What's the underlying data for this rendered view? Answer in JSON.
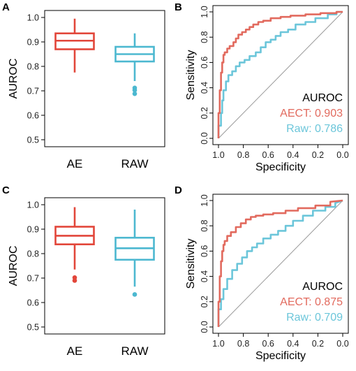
{
  "colors": {
    "ae": "#E2463A",
    "raw": "#4CB8D0",
    "ae_roc": "#E26A5E",
    "raw_roc": "#6CC6DA",
    "diag": "#9A9A9A",
    "frame": "#000000"
  },
  "chart_data": [
    {
      "panel": "A",
      "type": "box",
      "ylabel": "AUROC",
      "ylim": [
        0.5,
        1.0
      ],
      "yticks": [
        "0.5",
        "0.6",
        "0.7",
        "0.8",
        "0.9",
        "1.0"
      ],
      "categories": [
        "AE",
        "RAW"
      ],
      "boxes": [
        {
          "name": "AE",
          "color": "#E2463A",
          "whisker_low": 0.775,
          "q1": 0.87,
          "median": 0.905,
          "q3": 0.935,
          "whisker_high": 0.995,
          "outliers": []
        },
        {
          "name": "RAW",
          "color": "#4CB8D0",
          "whisker_low": 0.74,
          "q1": 0.82,
          "median": 0.85,
          "q3": 0.88,
          "whisker_high": 0.935,
          "outliers": [
            0.712,
            0.703,
            0.688
          ]
        }
      ]
    },
    {
      "panel": "B",
      "type": "line",
      "xlabel": "Specificity",
      "ylabel": "Sensitivity",
      "xlim": [
        1.0,
        0.0
      ],
      "ylim": [
        0.0,
        1.0
      ],
      "xticks": [
        "1.0",
        "0.8",
        "0.6",
        "0.4",
        "0.2",
        "0.0"
      ],
      "yticks": [
        "0.0",
        "0.2",
        "0.4",
        "0.6",
        "0.8",
        "1.0"
      ],
      "legend_title": "AUROC",
      "series": [
        {
          "name": "AECT: 0.903",
          "color": "#E26A5E",
          "x": [
            1.0,
            1.0,
            0.99,
            0.99,
            0.98,
            0.98,
            0.97,
            0.97,
            0.96,
            0.96,
            0.95,
            0.95,
            0.93,
            0.93,
            0.91,
            0.91,
            0.88,
            0.88,
            0.86,
            0.86,
            0.84,
            0.84,
            0.81,
            0.81,
            0.78,
            0.78,
            0.75,
            0.75,
            0.72,
            0.72,
            0.68,
            0.68,
            0.64,
            0.64,
            0.58,
            0.58,
            0.5,
            0.5,
            0.42,
            0.42,
            0.3,
            0.3,
            0.18,
            0.18,
            0.05,
            0.05,
            0.0
          ],
          "y": [
            0.0,
            0.2,
            0.2,
            0.38,
            0.38,
            0.52,
            0.52,
            0.6,
            0.6,
            0.66,
            0.66,
            0.68,
            0.68,
            0.71,
            0.71,
            0.73,
            0.73,
            0.76,
            0.76,
            0.79,
            0.79,
            0.82,
            0.82,
            0.84,
            0.84,
            0.86,
            0.86,
            0.88,
            0.88,
            0.9,
            0.9,
            0.92,
            0.92,
            0.93,
            0.93,
            0.95,
            0.95,
            0.96,
            0.96,
            0.97,
            0.97,
            0.98,
            0.98,
            0.99,
            0.99,
            1.0,
            1.0
          ]
        },
        {
          "name": "Raw: 0.786",
          "color": "#6CC6DA",
          "x": [
            1.0,
            1.0,
            0.98,
            0.98,
            0.97,
            0.97,
            0.96,
            0.96,
            0.94,
            0.94,
            0.92,
            0.92,
            0.89,
            0.89,
            0.86,
            0.86,
            0.83,
            0.83,
            0.79,
            0.79,
            0.75,
            0.75,
            0.7,
            0.7,
            0.66,
            0.66,
            0.62,
            0.62,
            0.58,
            0.58,
            0.54,
            0.54,
            0.5,
            0.5,
            0.44,
            0.44,
            0.38,
            0.38,
            0.3,
            0.3,
            0.22,
            0.22,
            0.12,
            0.12,
            0.05,
            0.05,
            0.0
          ],
          "y": [
            0.0,
            0.1,
            0.1,
            0.2,
            0.2,
            0.3,
            0.3,
            0.38,
            0.38,
            0.45,
            0.45,
            0.5,
            0.5,
            0.53,
            0.53,
            0.57,
            0.57,
            0.6,
            0.6,
            0.62,
            0.62,
            0.65,
            0.65,
            0.68,
            0.68,
            0.72,
            0.72,
            0.76,
            0.76,
            0.78,
            0.78,
            0.81,
            0.81,
            0.84,
            0.84,
            0.86,
            0.86,
            0.9,
            0.9,
            0.92,
            0.92,
            0.95,
            0.95,
            0.98,
            0.98,
            1.0,
            1.0
          ]
        }
      ]
    },
    {
      "panel": "C",
      "type": "box",
      "ylabel": "AUROC",
      "ylim": [
        0.5,
        1.0
      ],
      "yticks": [
        "0.5",
        "0.6",
        "0.7",
        "0.8",
        "0.9",
        "1.0"
      ],
      "categories": [
        "AE",
        "RAW"
      ],
      "boxes": [
        {
          "name": "AE",
          "color": "#E2463A",
          "whisker_low": 0.735,
          "q1": 0.838,
          "median": 0.873,
          "q3": 0.91,
          "whisker_high": 0.99,
          "outliers": [
            0.702,
            0.69
          ]
        },
        {
          "name": "RAW",
          "color": "#4CB8D0",
          "whisker_low": 0.665,
          "q1": 0.775,
          "median": 0.822,
          "q3": 0.865,
          "whisker_high": 0.98,
          "outliers": [
            0.633
          ]
        }
      ]
    },
    {
      "panel": "D",
      "type": "line",
      "xlabel": "Specificity",
      "ylabel": "Sensitivity",
      "xlim": [
        1.0,
        0.0
      ],
      "ylim": [
        0.0,
        1.0
      ],
      "xticks": [
        "1.0",
        "0.8",
        "0.6",
        "0.4",
        "0.2",
        "0.0"
      ],
      "yticks": [
        "0.0",
        "0.2",
        "0.4",
        "0.6",
        "0.8",
        "1.0"
      ],
      "legend_title": "AUROC",
      "series": [
        {
          "name": "AECT: 0.875",
          "color": "#E26A5E",
          "x": [
            1.0,
            1.0,
            0.99,
            0.99,
            0.98,
            0.98,
            0.97,
            0.97,
            0.96,
            0.96,
            0.95,
            0.95,
            0.93,
            0.93,
            0.9,
            0.9,
            0.86,
            0.86,
            0.82,
            0.82,
            0.78,
            0.78,
            0.74,
            0.74,
            0.7,
            0.7,
            0.64,
            0.64,
            0.56,
            0.56,
            0.46,
            0.46,
            0.36,
            0.36,
            0.22,
            0.22,
            0.1,
            0.1,
            0.0
          ],
          "y": [
            0.0,
            0.2,
            0.2,
            0.4,
            0.4,
            0.52,
            0.52,
            0.6,
            0.6,
            0.65,
            0.65,
            0.68,
            0.68,
            0.72,
            0.72,
            0.75,
            0.75,
            0.79,
            0.79,
            0.82,
            0.82,
            0.85,
            0.85,
            0.87,
            0.87,
            0.88,
            0.88,
            0.89,
            0.89,
            0.9,
            0.9,
            0.92,
            0.92,
            0.94,
            0.94,
            0.96,
            0.96,
            0.99,
            1.0
          ]
        },
        {
          "name": "Raw: 0.709",
          "color": "#6CC6DA",
          "x": [
            1.0,
            1.0,
            0.98,
            0.98,
            0.96,
            0.96,
            0.93,
            0.93,
            0.89,
            0.89,
            0.85,
            0.85,
            0.81,
            0.81,
            0.77,
            0.77,
            0.73,
            0.73,
            0.69,
            0.69,
            0.64,
            0.64,
            0.58,
            0.58,
            0.52,
            0.52,
            0.46,
            0.46,
            0.4,
            0.4,
            0.32,
            0.32,
            0.24,
            0.24,
            0.14,
            0.14,
            0.06,
            0.06,
            0.0
          ],
          "y": [
            0.0,
            0.14,
            0.14,
            0.22,
            0.22,
            0.3,
            0.3,
            0.38,
            0.38,
            0.45,
            0.45,
            0.5,
            0.5,
            0.55,
            0.55,
            0.6,
            0.6,
            0.63,
            0.63,
            0.66,
            0.66,
            0.7,
            0.7,
            0.73,
            0.73,
            0.76,
            0.76,
            0.8,
            0.8,
            0.84,
            0.84,
            0.88,
            0.88,
            0.92,
            0.92,
            0.95,
            0.95,
            0.98,
            1.0
          ]
        }
      ]
    }
  ]
}
